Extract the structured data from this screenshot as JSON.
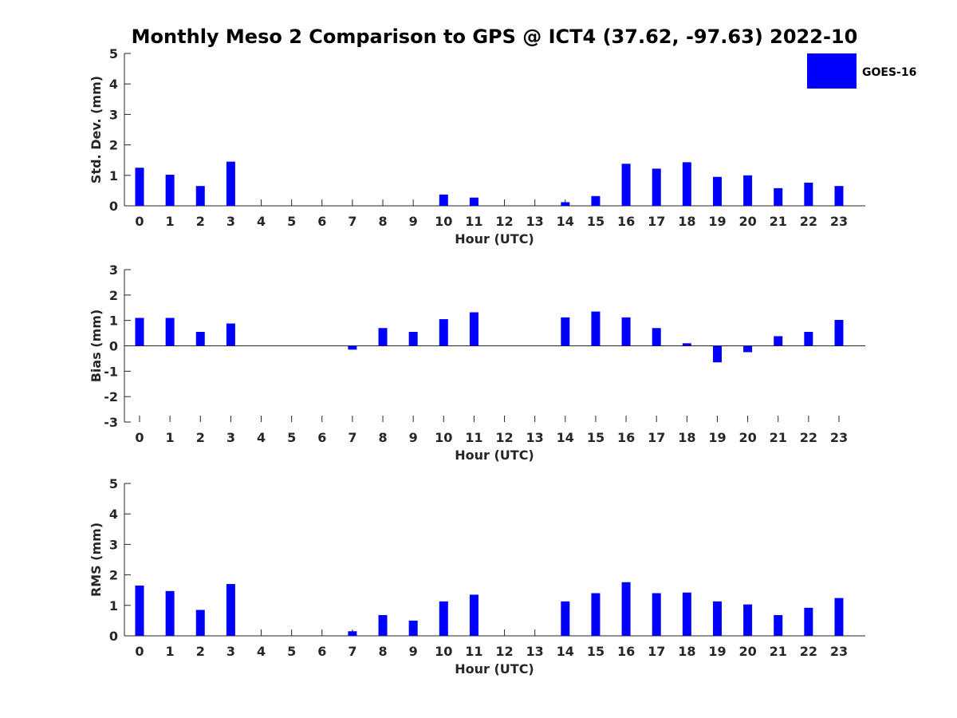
{
  "title": "Monthly Meso 2 Comparison to GPS @ ICT4 (37.62, -97.63) 2022-10",
  "legend": {
    "label": "GOES-16",
    "color": "#0000ff",
    "placement": "top-right"
  },
  "chart_data": [
    {
      "type": "bar",
      "ylabel": "Std. Dev. (mm)",
      "xlabel": "Hour (UTC)",
      "ylim": [
        0,
        5
      ],
      "yticks": [
        0,
        1,
        2,
        3,
        4,
        5
      ],
      "categories": [
        "0",
        "1",
        "2",
        "3",
        "4",
        "5",
        "6",
        "7",
        "8",
        "9",
        "10",
        "11",
        "12",
        "13",
        "14",
        "15",
        "16",
        "17",
        "18",
        "19",
        "20",
        "21",
        "22",
        "23"
      ],
      "series": [
        {
          "name": "GOES-16",
          "color": "#0000ff",
          "values": [
            1.25,
            1.02,
            0.65,
            1.45,
            0,
            0,
            0,
            0,
            0,
            0,
            0.37,
            0.27,
            0,
            0,
            0.12,
            0.32,
            1.38,
            1.22,
            1.43,
            0.95,
            1.0,
            0.58,
            0.76,
            0.65
          ]
        }
      ],
      "grid": false
    },
    {
      "type": "bar",
      "ylabel": "Bias (mm)",
      "xlabel": "Hour (UTC)",
      "ylim": [
        -3,
        3
      ],
      "yticks": [
        -3,
        -2,
        -1,
        0,
        1,
        2,
        3
      ],
      "categories": [
        "0",
        "1",
        "2",
        "3",
        "4",
        "5",
        "6",
        "7",
        "8",
        "9",
        "10",
        "11",
        "12",
        "13",
        "14",
        "15",
        "16",
        "17",
        "18",
        "19",
        "20",
        "21",
        "22",
        "23"
      ],
      "series": [
        {
          "name": "GOES-16",
          "color": "#0000ff",
          "values": [
            1.1,
            1.1,
            0.55,
            0.88,
            0,
            0,
            0,
            -0.15,
            0.7,
            0.55,
            1.05,
            1.32,
            0,
            0,
            1.12,
            1.35,
            1.12,
            0.7,
            0.1,
            -0.65,
            -0.25,
            0.38,
            0.55,
            1.02
          ]
        }
      ],
      "grid": false
    },
    {
      "type": "bar",
      "ylabel": "RMS (mm)",
      "xlabel": "Hour (UTC)",
      "ylim": [
        0,
        5
      ],
      "yticks": [
        0,
        1,
        2,
        3,
        4,
        5
      ],
      "categories": [
        "0",
        "1",
        "2",
        "3",
        "4",
        "5",
        "6",
        "7",
        "8",
        "9",
        "10",
        "11",
        "12",
        "13",
        "14",
        "15",
        "16",
        "17",
        "18",
        "19",
        "20",
        "21",
        "22",
        "23"
      ],
      "series": [
        {
          "name": "GOES-16",
          "color": "#0000ff",
          "values": [
            1.65,
            1.47,
            0.85,
            1.7,
            0,
            0,
            0,
            0.15,
            0.68,
            0.5,
            1.13,
            1.35,
            0,
            0,
            1.13,
            1.4,
            1.76,
            1.4,
            1.42,
            1.13,
            1.03,
            0.68,
            0.92,
            1.24
          ]
        }
      ],
      "grid": false
    }
  ]
}
